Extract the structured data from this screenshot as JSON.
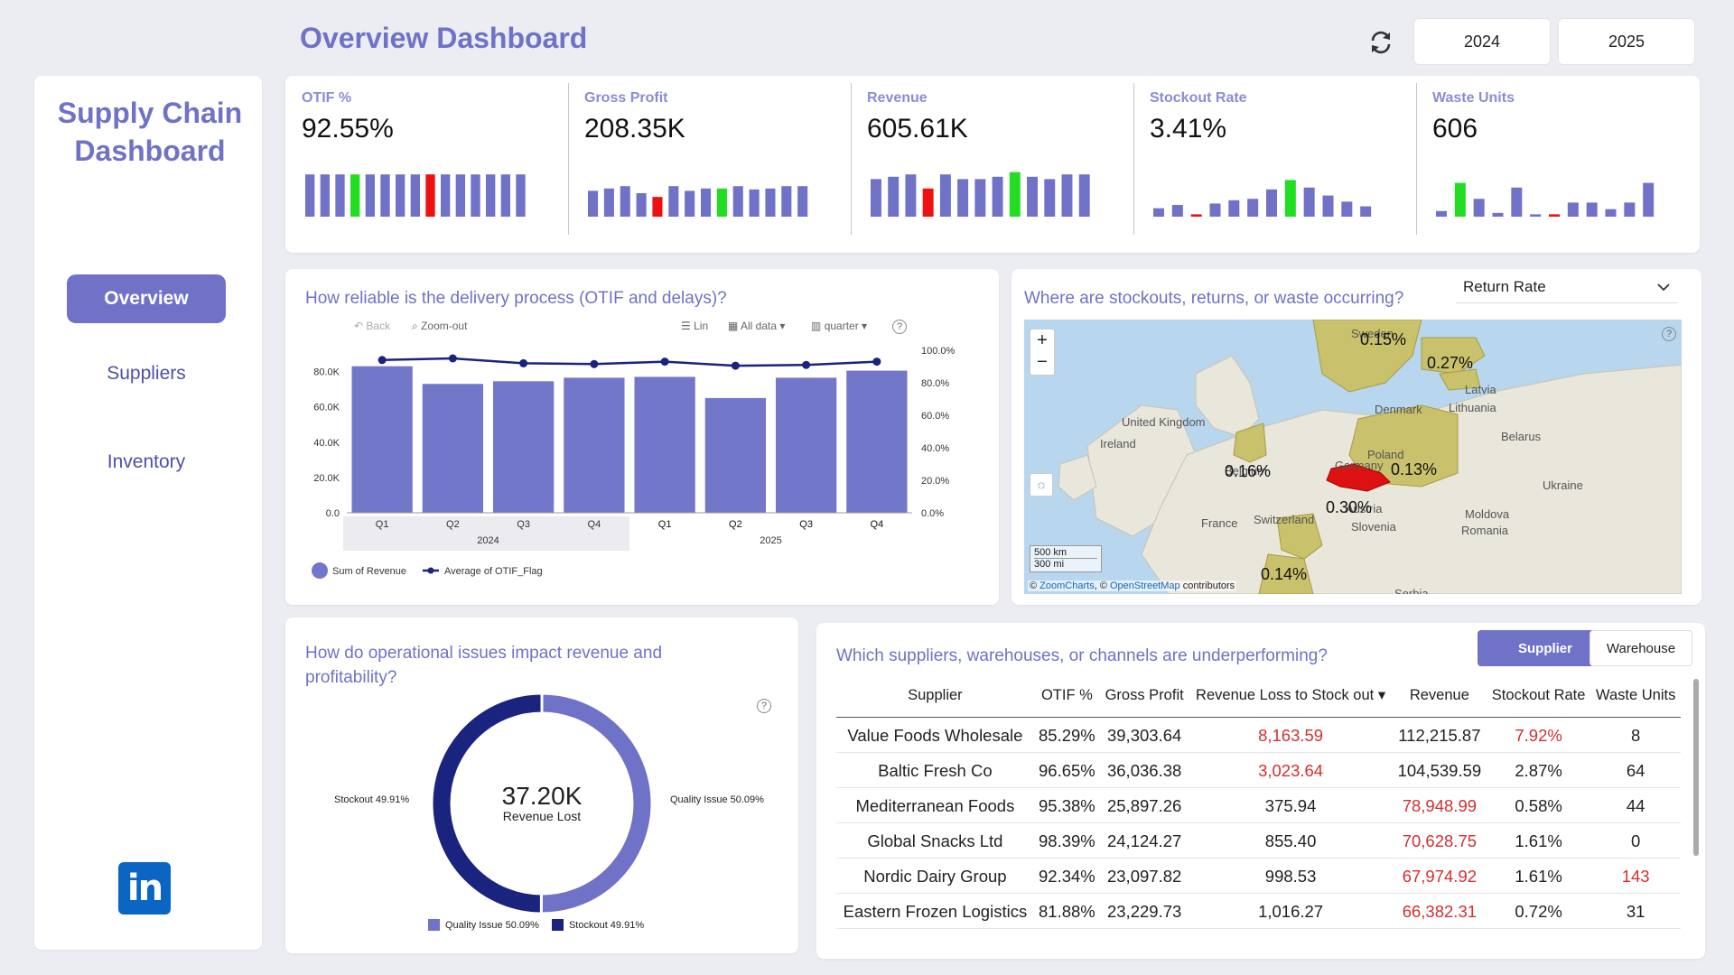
{
  "header": {
    "title": "Overview Dashboard",
    "years": [
      "2024",
      "2025"
    ]
  },
  "sidebar": {
    "title_line1": "Supply Chain",
    "title_line2": "Dashboard",
    "nav": [
      "Overview",
      "Suppliers",
      "Inventory"
    ],
    "active": "Overview"
  },
  "kpis": [
    {
      "label": "OTIF %",
      "value": "92.55%",
      "bars": [
        0.9,
        0.9,
        0.9,
        0.9,
        0.9,
        0.9,
        0.9,
        0.9,
        0.9,
        0.9,
        0.9,
        0.9,
        0.9,
        0.9,
        0.9
      ],
      "colors": [
        "n",
        "n",
        "n",
        "g",
        "n",
        "n",
        "n",
        "n",
        "r",
        "n",
        "n",
        "n",
        "n",
        "n",
        "n"
      ]
    },
    {
      "label": "Gross Profit",
      "value": "208.35K",
      "bars": [
        0.55,
        0.6,
        0.65,
        0.5,
        0.42,
        0.65,
        0.55,
        0.6,
        0.6,
        0.65,
        0.58,
        0.6,
        0.65,
        0.65
      ],
      "colors": [
        "n",
        "n",
        "n",
        "n",
        "r",
        "n",
        "n",
        "n",
        "g",
        "n",
        "n",
        "n",
        "n",
        "n"
      ]
    },
    {
      "label": "Revenue",
      "value": "605.61K",
      "bars": [
        0.8,
        0.85,
        0.9,
        0.6,
        0.9,
        0.8,
        0.8,
        0.85,
        0.95,
        0.85,
        0.8,
        0.9,
        0.9
      ],
      "colors": [
        "n",
        "n",
        "n",
        "r",
        "n",
        "n",
        "n",
        "n",
        "g",
        "n",
        "n",
        "n",
        "n"
      ]
    },
    {
      "label": "Stockout Rate",
      "value": "3.41%",
      "bars": [
        0.18,
        0.25,
        0.05,
        0.28,
        0.35,
        0.38,
        0.58,
        0.78,
        0.62,
        0.45,
        0.32,
        0.22
      ],
      "colors": [
        "n",
        "n",
        "r",
        "n",
        "n",
        "n",
        "n",
        "g",
        "n",
        "n",
        "n",
        "n"
      ]
    },
    {
      "label": "Waste Units",
      "value": "606",
      "bars": [
        0.12,
        0.72,
        0.38,
        0.08,
        0.62,
        0.05,
        0.05,
        0.3,
        0.3,
        0.16,
        0.3,
        0.72
      ],
      "colors": [
        "n",
        "g",
        "n",
        "n",
        "n",
        "n",
        "r",
        "n",
        "n",
        "n",
        "n",
        "n"
      ]
    }
  ],
  "delivery": {
    "title": "How reliable is the delivery process (OTIF and delays)?",
    "toolbar": [
      "Back",
      "Zoom-out",
      "Lin",
      "All data",
      "quarter"
    ],
    "legend": [
      "Sum of Revenue",
      "Average of OTIF_Flag"
    ],
    "chart_data": {
      "type": "bar",
      "categories": [
        "Q1",
        "Q2",
        "Q3",
        "Q4",
        "Q1",
        "Q2",
        "Q3",
        "Q4"
      ],
      "groups": [
        "2024",
        "2024",
        "2024",
        "2024",
        "2025",
        "2025",
        "2025",
        "2025"
      ],
      "group_labels": [
        "2024",
        "2025"
      ],
      "series": [
        {
          "name": "Sum of Revenue",
          "values": [
            83000,
            73000,
            74500,
            76500,
            77000,
            65000,
            76500,
            80500
          ]
        },
        {
          "name": "Average of OTIF_Flag",
          "values": [
            94,
            95,
            92,
            91.5,
            93,
            90.5,
            91,
            93
          ]
        }
      ],
      "y_left_ticks": [
        "0.0",
        "20.0K",
        "40.0K",
        "60.0K",
        "80.0K"
      ],
      "y_right_ticks": [
        "0.0%",
        "20.0%",
        "40.0%",
        "60.0%",
        "80.0%",
        "100.0%"
      ],
      "ylim": [
        0,
        90000
      ],
      "y2lim": [
        0,
        100
      ]
    }
  },
  "mapcard": {
    "title": "Where are stockouts, returns, or waste occurring?",
    "dropdown": "Return Rate",
    "labels": [
      {
        "t": "0.15%"
      },
      {
        "t": "0.27%"
      },
      {
        "t": "0.16%"
      },
      {
        "t": "0.13%"
      },
      {
        "t": "0.30%"
      },
      {
        "t": "0.14%"
      }
    ],
    "places": [
      "Sweden",
      "Latvia",
      "Lithuania",
      "Denmark",
      "United Kingdom",
      "Ireland",
      "Belarus",
      "Belgium",
      "Germany",
      "Poland",
      "Ukraine",
      "France",
      "Switzerland",
      "Austria",
      "Slovenia",
      "Moldova",
      "Romania",
      "Serbia"
    ],
    "scale": [
      "500 km",
      "300 mi"
    ],
    "attribution_prefix": "© ",
    "attribution_zc": "ZoomCharts",
    "attribution_mid": ", © ",
    "attribution_osm": "OpenStreetMap",
    "attribution_suffix": " contributors"
  },
  "donut": {
    "title_line1": "How do operational issues impact revenue and",
    "title_line2": "profitability?",
    "center_value": "37.20K",
    "center_label": "Revenue Lost",
    "chart_data": {
      "type": "pie",
      "categories": [
        "Quality Issue",
        "Stockout"
      ],
      "values": [
        50.09,
        49.91
      ],
      "colors": [
        "#6f72c6",
        "#1a237e"
      ]
    },
    "label_left": "Stockout 49.91%",
    "label_right": "Quality Issue 50.09%",
    "legend": [
      "Quality Issue 50.09%",
      "Stockout 49.91%"
    ]
  },
  "suppliers": {
    "title": "Which suppliers, warehouses, or channels are underperforming?",
    "tabs": [
      "Supplier",
      "Warehouse"
    ],
    "columns": [
      "Supplier",
      "OTIF %",
      "Gross Profit",
      "Revenue Loss to Stock out",
      "Revenue",
      "Stockout Rate",
      "Waste Units"
    ],
    "rows": [
      [
        "Value Foods Wholesale",
        "85.29%",
        "39,303.64",
        "8,163.59",
        "112,215.87",
        "7.92%",
        "8"
      ],
      [
        "Baltic Fresh Co",
        "96.65%",
        "36,036.38",
        "3,023.64",
        "104,539.59",
        "2.87%",
        "64"
      ],
      [
        "Mediterranean Foods",
        "95.38%",
        "25,897.26",
        "375.94",
        "78,948.99",
        "0.58%",
        "44"
      ],
      [
        "Global Snacks Ltd",
        "98.39%",
        "24,124.27",
        "855.40",
        "70,628.75",
        "1.61%",
        "0"
      ],
      [
        "Nordic Dairy Group",
        "92.34%",
        "23,097.82",
        "998.53",
        "67,974.92",
        "1.61%",
        "143"
      ],
      [
        "Eastern Frozen Logistics",
        "81.88%",
        "23,229.73",
        "1,016.27",
        "66,382.31",
        "0.72%",
        "31"
      ]
    ],
    "red": [
      [
        0,
        3
      ],
      [
        0,
        5
      ],
      [
        1,
        3
      ],
      [
        2,
        4
      ],
      [
        3,
        4
      ],
      [
        4,
        4
      ],
      [
        4,
        6
      ],
      [
        5,
        4
      ]
    ]
  },
  "colors": {
    "accent": "#6f72c6",
    "green": "#22dd22",
    "red": "#ee1111",
    "navy": "#1a237e"
  }
}
